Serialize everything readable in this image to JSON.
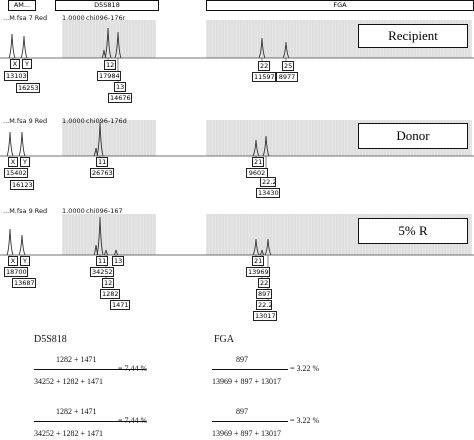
{
  "header": {
    "left_tag": "AM...",
    "locus1": "D5S818",
    "locus2": "FGA"
  },
  "panels": [
    {
      "file": "...M.fsa  7 Red",
      "scale": "1.0000",
      "sample_id": "chi096-176r",
      "label": "Recipient",
      "alleles": [
        {
          "allele": "X",
          "area": "13103"
        },
        {
          "allele": "Y",
          "area": "16253"
        },
        {
          "allele": "12",
          "area": "17984"
        },
        {
          "allele": "13",
          "area": "14676"
        },
        {
          "allele": "22",
          "area": "11597"
        },
        {
          "allele": "25",
          "area": "8977"
        }
      ]
    },
    {
      "file": "...M.fsa  9 Red",
      "scale": "1.0000",
      "sample_id": "chi096-176d",
      "label": "Donor",
      "alleles": [
        {
          "allele": "X",
          "area": "15402"
        },
        {
          "allele": "Y",
          "area": "16123"
        },
        {
          "allele": "11",
          "area": "26763"
        },
        {
          "allele": "21",
          "area": "9602"
        },
        {
          "allele": "22.2",
          "area": "13430"
        }
      ]
    },
    {
      "file": "...M.fsa  9 Red",
      "scale": "1.0000",
      "sample_id": "chi096-167",
      "label": "5% R",
      "alleles": [
        {
          "allele": "X",
          "area": "18700"
        },
        {
          "allele": "Y",
          "area": "13687"
        },
        {
          "allele": "11",
          "area": "34252"
        },
        {
          "allele": "12",
          "area": "1282"
        },
        {
          "allele": "13",
          "area": "1471"
        },
        {
          "allele": "21",
          "area": "13969"
        },
        {
          "allele": "22",
          "area": "897"
        },
        {
          "allele": "22.2",
          "area": "13017"
        }
      ]
    }
  ],
  "calculations": {
    "left_title": "D5S818",
    "right_title": "FGA",
    "left_numerator": "1282 + 1471",
    "left_denominator": "34252 + 1282 + 1471",
    "left_result": "= 7.44 %",
    "right_numerator": "897",
    "right_denominator": "13969 + 897 + 13017",
    "right_result": "= 3.22 %"
  }
}
